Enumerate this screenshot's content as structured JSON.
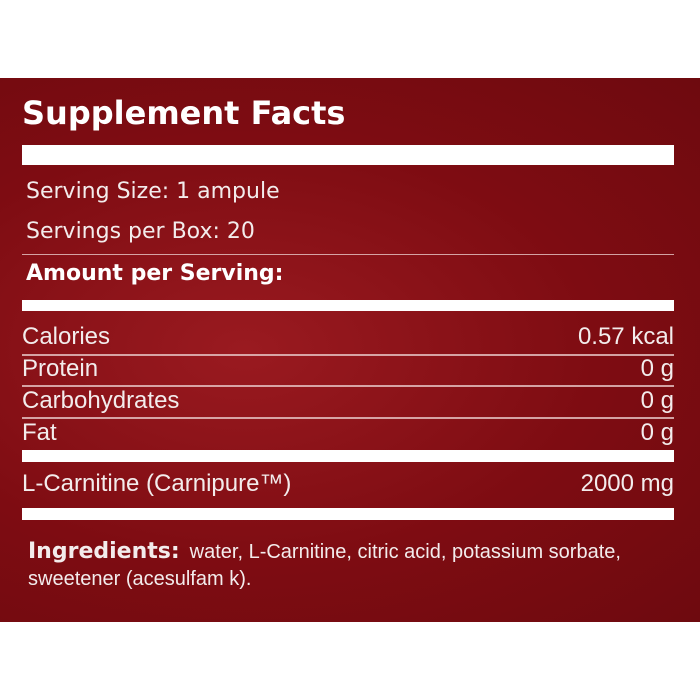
{
  "title": "Supplement Facts",
  "serving_size": {
    "label": "Serving Size:",
    "value": "1 ampule"
  },
  "servings_per_box": {
    "label": "Servings per Box:",
    "value": "20"
  },
  "amount_header": "Amount per Serving:",
  "nutrients": [
    {
      "name": "Calories",
      "value": "0.57 kcal"
    },
    {
      "name": "Protein",
      "value": "0 g"
    },
    {
      "name": "Carbohydrates",
      "value": "0 g"
    },
    {
      "name": "Fat",
      "value": "0 g"
    }
  ],
  "active": {
    "name": "L-Carnitine (Carnipure™)",
    "value": "2000 mg"
  },
  "ingredients": {
    "label": "Ingredients:",
    "text": "water, L-Carnitine, citric acid, potassium sorbate, sweetener (acesulfam  k)."
  },
  "colors": {
    "background": "#7e0c12",
    "text": "#ffffff"
  }
}
